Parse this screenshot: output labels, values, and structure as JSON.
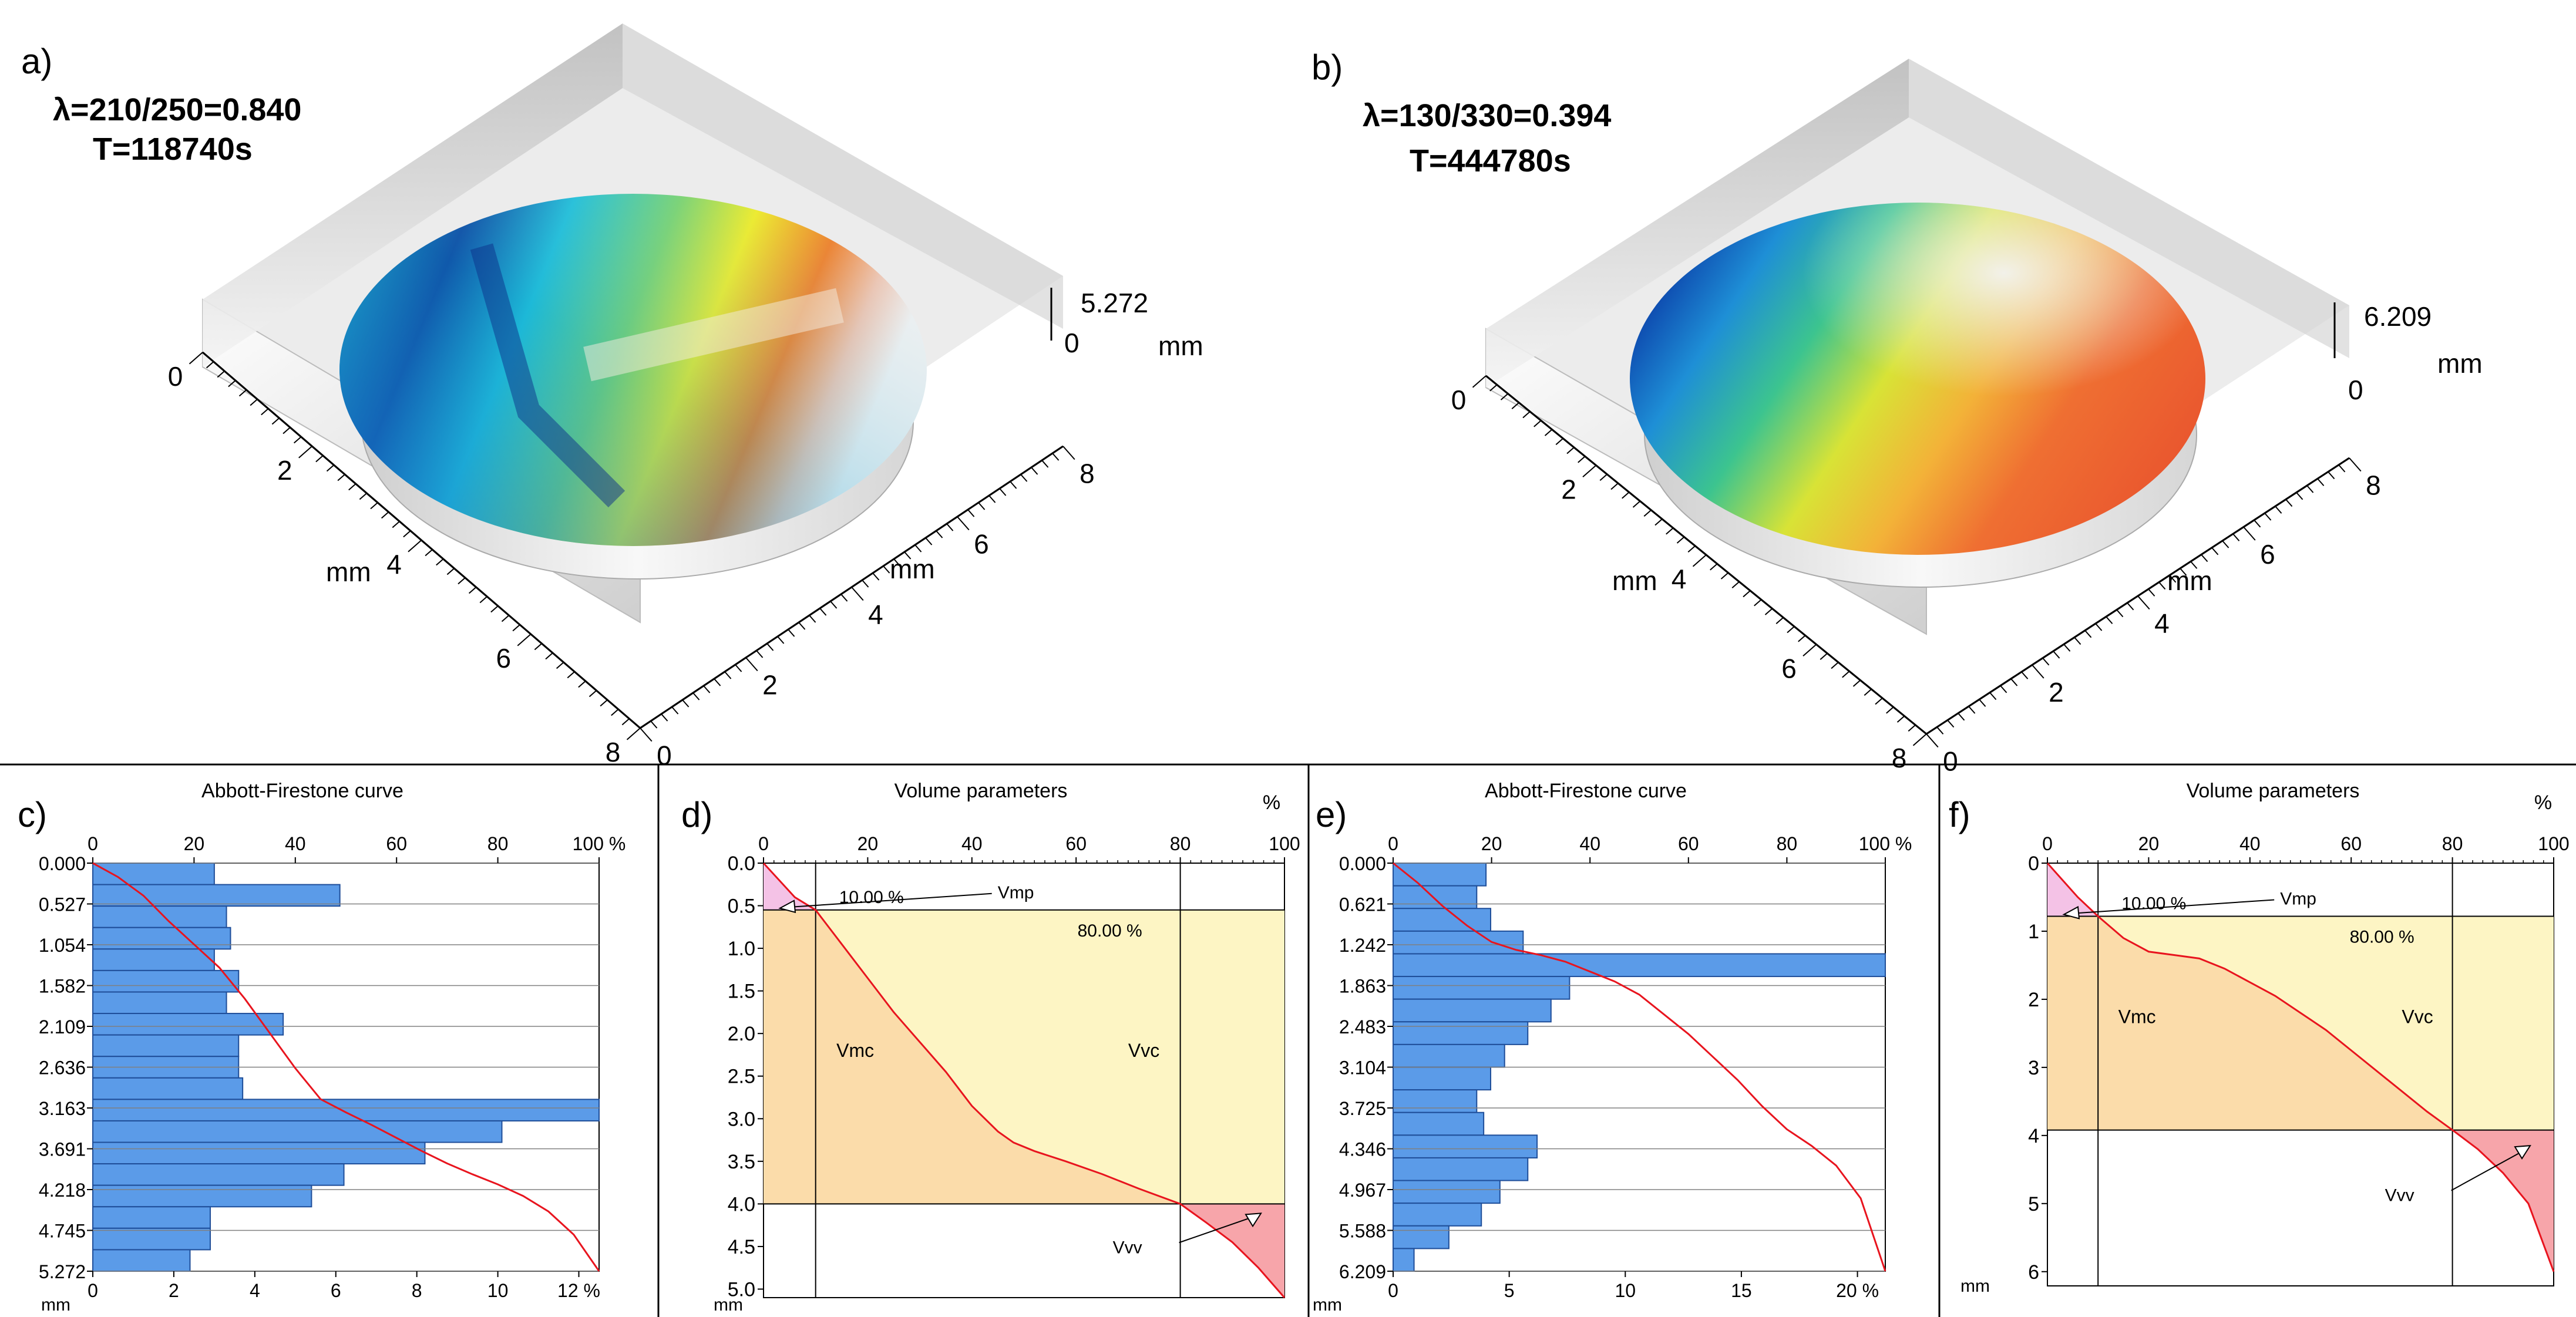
{
  "figure": {
    "panel_a": {
      "label": "a)",
      "lambda": "λ=210/250=0.840",
      "time": "T=118740s",
      "z_max": "5.272",
      "z_min": "0",
      "unit": "mm",
      "left_ticks": [
        "0",
        "2",
        "4",
        "6",
        "8"
      ],
      "right_ticks": [
        "0",
        "2",
        "4",
        "6",
        "8"
      ]
    },
    "panel_b": {
      "label": "b)",
      "lambda": "λ=130/330=0.394",
      "time": "T=444780s",
      "z_max": "6.209",
      "z_min": "0",
      "unit": "mm",
      "left_ticks": [
        "0",
        "2",
        "4",
        "6",
        "8"
      ],
      "right_ticks": [
        "0",
        "2",
        "4",
        "6",
        "8"
      ]
    },
    "colors": {
      "bar_fill": "#5b9be8",
      "bar_stroke": "#1f4e99",
      "curve": "#e8141e",
      "core_band": "#fdf5c4",
      "vmc_fill": "#fbdcaa",
      "vvv_fill": "#f7a5aa",
      "vmp_fill": "#f4c2e6",
      "grid": "#808080"
    }
  },
  "chart_data": [
    {
      "panel": "c)",
      "type": "bar",
      "title": "Abbott-Firestone curve",
      "top_axis_ticks": [
        "0",
        "20",
        "40",
        "60",
        "80",
        "100 %"
      ],
      "bottom_axis_ticks": [
        "0",
        "2",
        "4",
        "6",
        "8",
        "10",
        "12 %"
      ],
      "y_unit": "mm",
      "y_ticks": [
        "0.000",
        "0.527",
        "1.054",
        "1.582",
        "2.109",
        "2.636",
        "3.163",
        "3.691",
        "4.218",
        "4.745",
        "5.272"
      ],
      "ylim": [
        0,
        5.272
      ],
      "bar_xlim": [
        0,
        12.5
      ],
      "bar_values": [
        3.0,
        6.1,
        3.3,
        3.4,
        3.0,
        3.6,
        3.3,
        4.7,
        3.6,
        3.6,
        3.7,
        12.5,
        10.1,
        8.2,
        6.2,
        5.4,
        2.9,
        2.9,
        2.4
      ],
      "curve": {
        "x_percent": [
          0,
          5,
          10,
          15,
          20,
          25,
          30,
          35,
          40,
          45,
          50,
          55,
          60,
          65,
          70,
          75,
          80,
          85,
          90,
          95,
          100
        ],
        "depth_mm": [
          0.0,
          0.18,
          0.42,
          0.75,
          1.05,
          1.35,
          1.75,
          2.2,
          2.65,
          3.05,
          3.22,
          3.38,
          3.55,
          3.72,
          3.88,
          4.02,
          4.15,
          4.3,
          4.5,
          4.8,
          5.272
        ]
      }
    },
    {
      "panel": "d)",
      "type": "area",
      "title": "Volume parameters",
      "x_ticks": [
        "0",
        "20",
        "40",
        "60",
        "80",
        "100"
      ],
      "x_unit": "%",
      "y_unit": "mm",
      "y_ticks": [
        "0.0",
        "0.5",
        "1.0",
        "1.5",
        "2.0",
        "2.5",
        "3.0",
        "3.5",
        "4.0",
        "4.5",
        "5.0"
      ],
      "ylim": [
        0,
        5.1
      ],
      "xlim": [
        0,
        100
      ],
      "mr1_percent": 10,
      "mr2_percent": 80,
      "mr1_depth": 0.55,
      "mr2_depth": 4.0,
      "mr1_label": "10.00 %",
      "mr2_label": "80.00 %",
      "labels": {
        "vmp": "Vmp",
        "vmc": "Vmc",
        "vvc": "Vvc",
        "vvv": "Vvv"
      },
      "curve": {
        "x_percent": [
          0,
          3,
          6,
          10,
          15,
          20,
          25,
          30,
          35,
          40,
          45,
          48,
          52,
          58,
          65,
          72,
          80,
          85,
          90,
          95,
          100
        ],
        "depth_mm": [
          0.0,
          0.2,
          0.4,
          0.55,
          0.95,
          1.35,
          1.75,
          2.1,
          2.45,
          2.85,
          3.15,
          3.28,
          3.38,
          3.5,
          3.65,
          3.82,
          4.0,
          4.22,
          4.45,
          4.75,
          5.1
        ]
      }
    },
    {
      "panel": "e)",
      "type": "bar",
      "title": "Abbott-Firestone curve",
      "top_axis_ticks": [
        "0",
        "20",
        "40",
        "60",
        "80",
        "100 %"
      ],
      "bottom_axis_ticks": [
        "0",
        "5",
        "10",
        "15",
        "20 %"
      ],
      "y_unit": "mm",
      "y_ticks": [
        "0.000",
        "0.621",
        "1.242",
        "1.863",
        "2.483",
        "3.104",
        "3.725",
        "4.346",
        "4.967",
        "5.588",
        "6.209"
      ],
      "ylim": [
        0,
        6.209
      ],
      "bar_xlim": [
        0,
        21.2
      ],
      "bar_values": [
        4.0,
        3.6,
        4.2,
        5.6,
        21.2,
        7.6,
        6.8,
        5.8,
        4.8,
        4.2,
        3.6,
        3.9,
        6.2,
        5.8,
        4.6,
        3.8,
        2.4,
        0.9
      ],
      "curve": {
        "x_percent": [
          0,
          5,
          10,
          15,
          20,
          25,
          30,
          35,
          40,
          45,
          50,
          55,
          60,
          65,
          70,
          75,
          80,
          85,
          90,
          95,
          100
        ],
        "depth_mm": [
          0.0,
          0.3,
          0.65,
          0.95,
          1.2,
          1.32,
          1.4,
          1.5,
          1.65,
          1.8,
          2.0,
          2.3,
          2.6,
          2.95,
          3.3,
          3.7,
          4.05,
          4.3,
          4.6,
          5.1,
          6.209
        ]
      }
    },
    {
      "panel": "f)",
      "type": "area",
      "title": "Volume parameters",
      "x_ticks": [
        "0",
        "20",
        "40",
        "60",
        "80",
        "100"
      ],
      "x_unit": "%",
      "y_unit": "mm",
      "y_ticks": [
        "0",
        "1",
        "2",
        "3",
        "4",
        "5",
        "6"
      ],
      "ylim": [
        0,
        6.209
      ],
      "xlim": [
        0,
        100
      ],
      "mr1_percent": 10,
      "mr2_percent": 80,
      "mr1_depth": 0.78,
      "mr2_depth": 3.92,
      "mr1_label": "10.00 %",
      "mr2_label": "80.00 %",
      "labels": {
        "vmp": "Vmp",
        "vmc": "Vmc",
        "vvc": "Vvc",
        "vvv": "Vvv"
      },
      "curve": {
        "x_percent": [
          0,
          3,
          6,
          10,
          15,
          20,
          25,
          30,
          35,
          40,
          45,
          50,
          55,
          60,
          65,
          70,
          75,
          80,
          85,
          90,
          95,
          100
        ],
        "depth_mm": [
          0.0,
          0.25,
          0.5,
          0.78,
          1.1,
          1.3,
          1.35,
          1.4,
          1.55,
          1.75,
          1.95,
          2.2,
          2.45,
          2.75,
          3.05,
          3.35,
          3.65,
          3.92,
          4.2,
          4.55,
          5.0,
          6.0
        ]
      }
    }
  ]
}
